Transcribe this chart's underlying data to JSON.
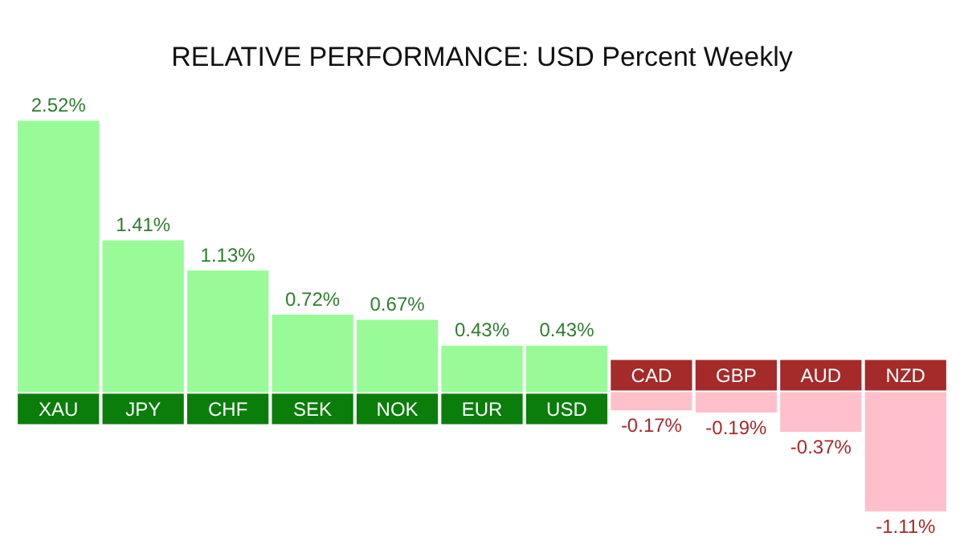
{
  "chart_data": {
    "type": "bar",
    "title": "RELATIVE PERFORMANCE: USD Percent Weekly",
    "categories": [
      "XAU",
      "JPY",
      "CHF",
      "SEK",
      "NOK",
      "EUR",
      "USD",
      "CAD",
      "GBP",
      "AUD",
      "NZD"
    ],
    "values": [
      2.52,
      1.41,
      1.13,
      0.72,
      0.67,
      0.43,
      0.43,
      -0.17,
      -0.19,
      -0.37,
      -1.11
    ],
    "value_labels": [
      "2.52%",
      "1.41%",
      "1.13%",
      "0.72%",
      "0.67%",
      "0.43%",
      "0.43%",
      "-0.17%",
      "-0.19%",
      "-0.37%",
      "-1.11%"
    ],
    "colors": [
      "#98fb98",
      "#98fb98",
      "#98fb98",
      "#98fb98",
      "#98fb98",
      "#98fb98",
      "#98fb98",
      "#ffc0cb",
      "#ffc0cb",
      "#ffc0cb",
      "#ffc0cb"
    ],
    "grid": false,
    "legend": false
  }
}
